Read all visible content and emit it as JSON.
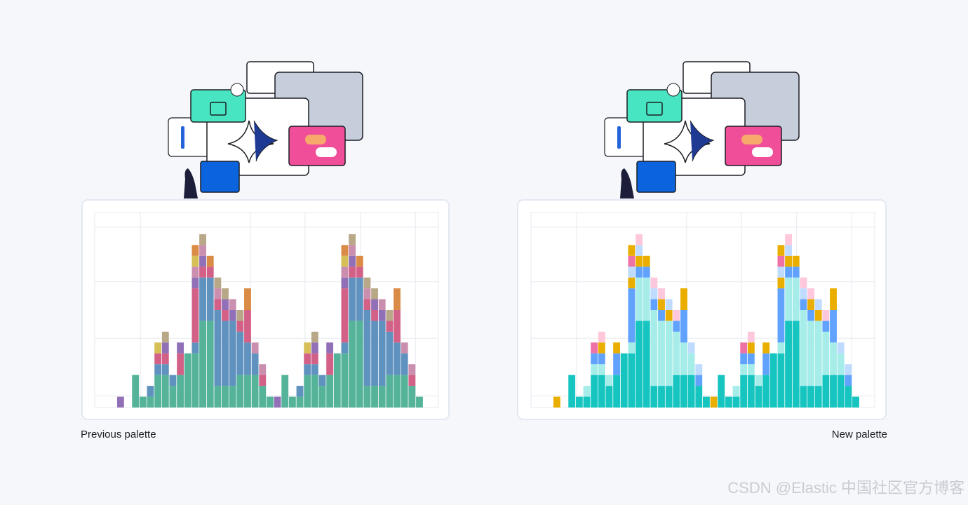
{
  "chart_data": [
    {
      "type": "bar",
      "stacked": true,
      "title": "Previous palette",
      "ylim": [
        0,
        18
      ],
      "series": [
        {
          "color": "#54b399",
          "values": [
            0,
            0,
            0,
            0,
            0,
            3,
            1,
            1,
            3,
            3,
            2,
            3,
            5,
            5,
            8,
            8,
            2,
            2,
            2,
            3,
            3,
            3,
            2,
            1,
            0,
            3,
            1,
            1,
            3,
            3,
            2,
            3,
            5,
            5,
            8,
            8,
            2,
            2,
            2,
            3,
            3,
            3,
            2,
            1,
            0,
            0
          ]
        },
        {
          "color": "#6092c0",
          "values": [
            0,
            0,
            0,
            0,
            0,
            0,
            0,
            1,
            1,
            1,
            1,
            0,
            0,
            1,
            4,
            4,
            7,
            6,
            6,
            4,
            3,
            2,
            0,
            0,
            0,
            0,
            0,
            1,
            1,
            1,
            1,
            0,
            0,
            1,
            4,
            4,
            7,
            6,
            6,
            4,
            3,
            2,
            0,
            0,
            0,
            0
          ]
        },
        {
          "color": "#d36086",
          "values": [
            0,
            0,
            0,
            0,
            0,
            0,
            0,
            0,
            1,
            1,
            0,
            2,
            0,
            5,
            1,
            1,
            1,
            1,
            0,
            1,
            3,
            0,
            1,
            0,
            0,
            0,
            0,
            0,
            1,
            1,
            0,
            2,
            0,
            5,
            1,
            1,
            1,
            1,
            0,
            1,
            3,
            0,
            1,
            0,
            0,
            0
          ]
        },
        {
          "color": "#9170b8",
          "values": [
            0,
            0,
            0,
            1,
            0,
            0,
            0,
            0,
            0,
            1,
            0,
            1,
            0,
            1,
            1,
            0,
            0,
            1,
            1,
            0,
            0,
            0,
            0,
            0,
            1,
            0,
            0,
            0,
            0,
            1,
            0,
            1,
            0,
            1,
            1,
            0,
            0,
            1,
            1,
            0,
            0,
            0,
            0,
            0,
            0,
            0
          ]
        },
        {
          "color": "#ca8eae",
          "values": [
            0,
            0,
            0,
            0,
            0,
            0,
            0,
            0,
            0,
            0,
            0,
            0,
            0,
            1,
            1,
            0,
            1,
            0,
            1,
            0,
            0,
            1,
            1,
            0,
            0,
            0,
            0,
            0,
            0,
            0,
            0,
            0,
            0,
            1,
            1,
            0,
            1,
            0,
            1,
            0,
            0,
            1,
            1,
            0,
            0,
            0
          ]
        },
        {
          "color": "#d6bf57",
          "values": [
            0,
            0,
            0,
            0,
            0,
            0,
            0,
            0,
            1,
            0,
            0,
            0,
            0,
            1,
            0,
            0,
            0,
            0,
            0,
            0,
            0,
            0,
            0,
            0,
            0,
            0,
            0,
            0,
            1,
            0,
            0,
            0,
            0,
            1,
            0,
            0,
            0,
            0,
            0,
            0,
            0,
            0,
            0,
            0,
            0,
            0
          ]
        },
        {
          "color": "#b9a888",
          "values": [
            0,
            0,
            0,
            0,
            0,
            0,
            0,
            0,
            0,
            1,
            0,
            0,
            0,
            0,
            1,
            0,
            1,
            1,
            0,
            1,
            0,
            0,
            0,
            0,
            0,
            0,
            0,
            0,
            0,
            1,
            0,
            0,
            0,
            0,
            1,
            0,
            1,
            1,
            0,
            1,
            0,
            0,
            0,
            0,
            0,
            0
          ]
        },
        {
          "color": "#da8b45",
          "values": [
            0,
            0,
            0,
            0,
            0,
            0,
            0,
            0,
            0,
            0,
            0,
            0,
            0,
            1,
            0,
            1,
            0,
            0,
            0,
            0,
            2,
            0,
            0,
            0,
            0,
            0,
            0,
            0,
            0,
            0,
            0,
            0,
            0,
            1,
            0,
            1,
            0,
            0,
            0,
            0,
            2,
            0,
            0,
            0,
            0,
            0
          ]
        }
      ]
    },
    {
      "type": "bar",
      "stacked": true,
      "title": "New palette",
      "ylim": [
        0,
        18
      ],
      "series": [
        {
          "color": "#16c5c0",
          "values": [
            0,
            0,
            0,
            0,
            0,
            3,
            1,
            1,
            3,
            3,
            2,
            3,
            5,
            5,
            8,
            8,
            2,
            2,
            2,
            3,
            3,
            3,
            2,
            1,
            0,
            3,
            1,
            1,
            3,
            3,
            2,
            3,
            5,
            5,
            8,
            8,
            2,
            2,
            2,
            3,
            3,
            3,
            2,
            1,
            0,
            0
          ]
        },
        {
          "color": "#a6edea",
          "values": [
            0,
            0,
            0,
            0,
            0,
            0,
            0,
            1,
            1,
            1,
            1,
            0,
            0,
            1,
            4,
            4,
            7,
            6,
            6,
            4,
            3,
            2,
            0,
            0,
            0,
            0,
            0,
            1,
            1,
            1,
            1,
            0,
            0,
            1,
            4,
            4,
            7,
            6,
            6,
            4,
            3,
            2,
            0,
            0,
            0,
            0
          ]
        },
        {
          "color": "#61a2ff",
          "values": [
            0,
            0,
            0,
            0,
            0,
            0,
            0,
            0,
            1,
            1,
            0,
            2,
            0,
            5,
            1,
            1,
            1,
            1,
            0,
            1,
            3,
            0,
            1,
            0,
            0,
            0,
            0,
            0,
            1,
            1,
            0,
            2,
            0,
            5,
            1,
            1,
            1,
            1,
            0,
            1,
            3,
            0,
            1,
            0,
            0,
            0
          ]
        },
        {
          "color": "#eaae01",
          "values": [
            0,
            0,
            0,
            1,
            0,
            0,
            0,
            0,
            0,
            1,
            0,
            1,
            0,
            1,
            1,
            0,
            0,
            1,
            1,
            0,
            0,
            0,
            0,
            0,
            1,
            0,
            0,
            0,
            0,
            1,
            0,
            1,
            0,
            1,
            1,
            0,
            0,
            1,
            1,
            0,
            0,
            0,
            0,
            0,
            0,
            0
          ]
        },
        {
          "color": "#bfdbff",
          "values": [
            0,
            0,
            0,
            0,
            0,
            0,
            0,
            0,
            0,
            0,
            0,
            0,
            0,
            1,
            1,
            0,
            1,
            0,
            1,
            0,
            0,
            1,
            1,
            0,
            0,
            0,
            0,
            0,
            0,
            0,
            0,
            0,
            0,
            1,
            1,
            0,
            1,
            0,
            1,
            0,
            0,
            1,
            1,
            0,
            0,
            0
          ]
        },
        {
          "color": "#ee72a6",
          "values": [
            0,
            0,
            0,
            0,
            0,
            0,
            0,
            0,
            1,
            0,
            0,
            0,
            0,
            1,
            0,
            0,
            0,
            0,
            0,
            0,
            0,
            0,
            0,
            0,
            0,
            0,
            0,
            0,
            1,
            0,
            0,
            0,
            0,
            1,
            0,
            0,
            0,
            0,
            0,
            0,
            0,
            0,
            0,
            0,
            0,
            0
          ]
        },
        {
          "color": "#ffc7db",
          "values": [
            0,
            0,
            0,
            0,
            0,
            0,
            0,
            0,
            0,
            1,
            0,
            0,
            0,
            0,
            1,
            0,
            1,
            1,
            0,
            1,
            0,
            0,
            0,
            0,
            0,
            0,
            0,
            0,
            0,
            1,
            0,
            0,
            0,
            0,
            1,
            0,
            1,
            1,
            0,
            1,
            0,
            0,
            0,
            0,
            0,
            0
          ]
        },
        {
          "color": "#eaae01",
          "values": [
            0,
            0,
            0,
            0,
            0,
            0,
            0,
            0,
            0,
            0,
            0,
            0,
            0,
            1,
            0,
            1,
            0,
            0,
            0,
            0,
            2,
            0,
            0,
            0,
            0,
            0,
            0,
            0,
            0,
            0,
            0,
            0,
            0,
            1,
            0,
            1,
            0,
            0,
            0,
            0,
            2,
            0,
            0,
            0,
            0,
            0
          ]
        }
      ]
    }
  ],
  "watermark": "CSDN @Elastic 中国社区官方博客"
}
